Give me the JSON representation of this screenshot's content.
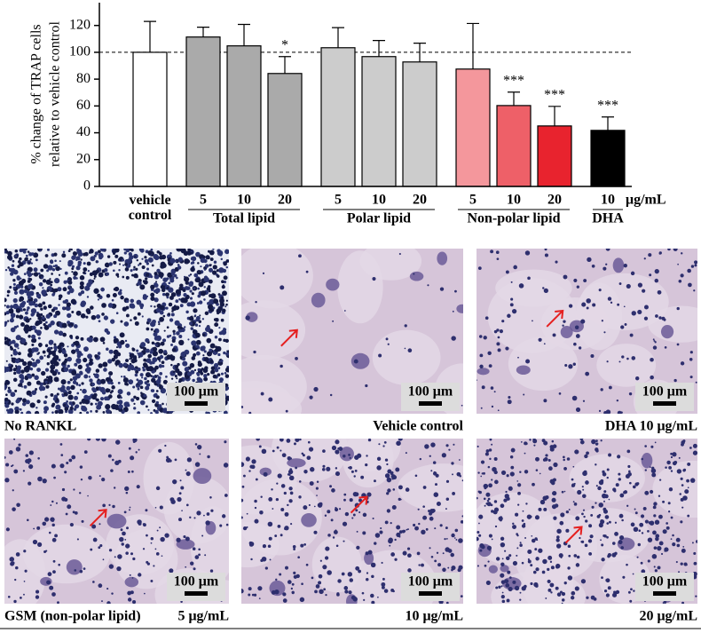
{
  "chart_data": {
    "type": "bar",
    "ylabel": [
      "% change of TRAP cells",
      "relative to vehicle control"
    ],
    "ylim": [
      0,
      137
    ],
    "yticks": [
      0,
      20,
      40,
      60,
      80,
      100,
      120
    ],
    "reference_line": 100,
    "unit_label": "μg/mL",
    "groups": [
      {
        "name": null,
        "bars": [
          {
            "label": "vehicle control",
            "value": 100,
            "error": 23,
            "color": "#ffffff",
            "annotation": null
          }
        ]
      },
      {
        "name": "Total lipid",
        "bars": [
          {
            "label": "5",
            "value": 111.4,
            "error": 7.3,
            "color": "#aaaaaa",
            "annotation": null
          },
          {
            "label": "10",
            "value": 104.8,
            "error": 16,
            "color": "#aaaaaa",
            "annotation": null
          },
          {
            "label": "20",
            "value": 84.2,
            "error": 12.6,
            "color": "#aaaaaa",
            "annotation": "*"
          }
        ]
      },
      {
        "name": "Polar lipid",
        "bars": [
          {
            "label": "5",
            "value": 103.4,
            "error": 15,
            "color": "#cccccc",
            "annotation": null
          },
          {
            "label": "10",
            "value": 96.8,
            "error": 12,
            "color": "#cccccc",
            "annotation": null
          },
          {
            "label": "20",
            "value": 92.8,
            "error": 14,
            "color": "#cccccc",
            "annotation": null
          }
        ]
      },
      {
        "name": "Non-polar lipid",
        "bars": [
          {
            "label": "5",
            "value": 87.5,
            "error": 34,
            "color": "#f4979c",
            "annotation": null
          },
          {
            "label": "10",
            "value": 60.3,
            "error": 10,
            "color": "#ee6068",
            "annotation": "***"
          },
          {
            "label": "20",
            "value": 45.1,
            "error": 14.6,
            "color": "#e8232e",
            "annotation": "***"
          }
        ]
      },
      {
        "name": "DHA",
        "bars": [
          {
            "label": "10",
            "value": 41.8,
            "error": 10,
            "color": "#000000",
            "annotation": "***"
          }
        ]
      }
    ]
  },
  "micrographs": {
    "rows": [
      {
        "label": null,
        "panels": [
          {
            "caption": "No RANKL",
            "scale_bar": "100 μm"
          },
          {
            "caption": "Vehicle control",
            "scale_bar": "100 μm"
          },
          {
            "caption": "DHA 10 μg/mL",
            "scale_bar": "100 μm"
          }
        ]
      },
      {
        "label": "GSM (non-polar lipid)",
        "panels": [
          {
            "caption": "5 μg/mL",
            "scale_bar": "100 μm"
          },
          {
            "caption": "10 μg/mL",
            "scale_bar": "100 μm"
          },
          {
            "caption": "20 μg/mL",
            "scale_bar": "100 μm"
          }
        ]
      }
    ]
  }
}
